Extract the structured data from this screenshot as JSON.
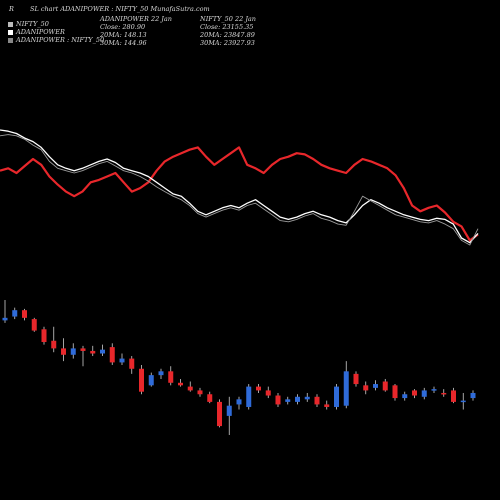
{
  "header": {
    "r_label": "R",
    "title": "SL chart ADANIPOWER : NIFTY_50  MunafaSutra.com"
  },
  "legend": [
    {
      "label": "NIFTY_50",
      "color": "#bbbbbb"
    },
    {
      "label": "ADANIPOWER",
      "color": "#ffffff"
    },
    {
      "label": "ADANIPOWER : NIFTY_50",
      "color": "#888888"
    }
  ],
  "info": {
    "adani": {
      "title": "ADANIPOWER 22 Jan",
      "close": "Close: 280.90",
      "ma20": "20MA: 148.13",
      "ma30": "30MA: 144.96"
    },
    "nifty": {
      "title": "NIFTY_50  22 Jan",
      "close": "Close: 23155.35",
      "ma20": "20MA: 23847.89",
      "ma30": "30MA: 23927.93"
    }
  },
  "colors": {
    "background": "#000000",
    "adani_line": "#ffffff",
    "nifty_line": "#e8272b",
    "ratio_line": "#9a9a9a",
    "candle_up": "#2f6bd9",
    "candle_down": "#e8272b",
    "wick": "#cfcfcf"
  },
  "chart_data": {
    "type": "line",
    "series": [
      {
        "name": "NIFTY_50",
        "color": "#e8272b",
        "values": [
          70,
          72,
          68,
          74,
          80,
          75,
          65,
          58,
          52,
          48,
          52,
          60,
          62,
          65,
          68,
          60,
          52,
          55,
          60,
          70,
          78,
          82,
          85,
          88,
          90,
          82,
          75,
          80,
          85,
          90,
          75,
          72,
          68,
          75,
          80,
          82,
          85,
          84,
          80,
          75,
          72,
          70,
          68,
          75,
          80,
          78,
          75,
          72,
          66,
          55,
          40,
          35,
          38,
          40,
          34,
          26,
          22,
          10,
          15
        ]
      },
      {
        "name": "ADANIPOWER",
        "color": "#ffffff",
        "values": [
          105,
          104,
          102,
          98,
          95,
          90,
          82,
          75,
          72,
          70,
          72,
          75,
          78,
          80,
          77,
          72,
          70,
          68,
          65,
          60,
          55,
          50,
          48,
          42,
          35,
          32,
          35,
          38,
          40,
          38,
          42,
          45,
          40,
          35,
          30,
          28,
          30,
          33,
          35,
          32,
          30,
          27,
          25,
          32,
          40,
          45,
          42,
          38,
          35,
          32,
          30,
          28,
          27,
          29,
          28,
          24,
          12,
          8,
          16
        ]
      },
      {
        "name": "ADANIPOWER : NIFTY_50",
        "color": "#9a9a9a",
        "values": [
          100,
          101,
          100,
          97,
          92,
          88,
          78,
          72,
          70,
          68,
          70,
          73,
          76,
          78,
          74,
          70,
          68,
          65,
          61,
          56,
          52,
          48,
          45,
          40,
          33,
          30,
          33,
          36,
          38,
          36,
          40,
          42,
          37,
          32,
          27,
          26,
          28,
          31,
          33,
          29,
          27,
          24,
          23,
          35,
          48,
          44,
          40,
          36,
          32,
          30,
          28,
          26,
          25,
          27,
          24,
          20,
          10,
          6,
          20
        ]
      }
    ],
    "candles": [
      {
        "o": 60,
        "c": 62,
        "h": 76,
        "l": 58
      },
      {
        "o": 63,
        "c": 68,
        "h": 70,
        "l": 61
      },
      {
        "o": 68,
        "c": 62,
        "h": 69,
        "l": 60
      },
      {
        "o": 61,
        "c": 52,
        "h": 62,
        "l": 51
      },
      {
        "o": 53,
        "c": 43,
        "h": 55,
        "l": 41
      },
      {
        "o": 44,
        "c": 38,
        "h": 55,
        "l": 35
      },
      {
        "o": 38,
        "c": 33,
        "h": 46,
        "l": 28
      },
      {
        "o": 33,
        "c": 38,
        "h": 42,
        "l": 30
      },
      {
        "o": 38,
        "c": 36,
        "h": 40,
        "l": 24
      },
      {
        "o": 36,
        "c": 34,
        "h": 40,
        "l": 32
      },
      {
        "o": 34,
        "c": 37,
        "h": 41,
        "l": 32
      },
      {
        "o": 39,
        "c": 27,
        "h": 42,
        "l": 25
      },
      {
        "o": 27,
        "c": 30,
        "h": 34,
        "l": 25
      },
      {
        "o": 30,
        "c": 22,
        "h": 32,
        "l": 18
      },
      {
        "o": 22,
        "c": 4,
        "h": 25,
        "l": 2
      },
      {
        "o": 9,
        "c": 17,
        "h": 19,
        "l": 8
      },
      {
        "o": 17,
        "c": 20,
        "h": 22,
        "l": 14
      },
      {
        "o": 20,
        "c": 11,
        "h": 24,
        "l": 9
      },
      {
        "o": 11,
        "c": 9,
        "h": 14,
        "l": 8
      },
      {
        "o": 8,
        "c": 5,
        "h": 12,
        "l": 4
      },
      {
        "o": 5,
        "c": 2,
        "h": 7,
        "l": 0
      },
      {
        "o": 2,
        "c": -4,
        "h": 4,
        "l": -5
      },
      {
        "o": -4,
        "c": -23,
        "h": -2,
        "l": -24
      },
      {
        "o": -15,
        "c": -7,
        "h": 0,
        "l": -30
      },
      {
        "o": -6,
        "c": -2,
        "h": 0,
        "l": -10
      },
      {
        "o": -8,
        "c": 8,
        "h": 10,
        "l": -10
      },
      {
        "o": 8,
        "c": 5,
        "h": 10,
        "l": 3
      },
      {
        "o": 5,
        "c": 1,
        "h": 8,
        "l": -1
      },
      {
        "o": 1,
        "c": -6,
        "h": 3,
        "l": -8
      },
      {
        "o": -4,
        "c": -2,
        "h": 0,
        "l": -6
      },
      {
        "o": -4,
        "c": 0,
        "h": 2,
        "l": -6
      },
      {
        "o": -2,
        "c": 0,
        "h": 3,
        "l": -4
      },
      {
        "o": 0,
        "c": -6,
        "h": 2,
        "l": -8
      },
      {
        "o": -6,
        "c": -8,
        "h": -3,
        "l": -10
      },
      {
        "o": -8,
        "c": 8,
        "h": 10,
        "l": -10
      },
      {
        "o": -7,
        "c": 20,
        "h": 28,
        "l": -9
      },
      {
        "o": 18,
        "c": 10,
        "h": 20,
        "l": 8
      },
      {
        "o": 9,
        "c": 5,
        "h": 12,
        "l": 2
      },
      {
        "o": 7,
        "c": 10,
        "h": 13,
        "l": 5
      },
      {
        "o": 12,
        "c": 5,
        "h": 14,
        "l": 4
      },
      {
        "o": 9,
        "c": -1,
        "h": 10,
        "l": -3
      },
      {
        "o": -1,
        "c": 2,
        "h": 4,
        "l": -3
      },
      {
        "o": 5,
        "c": 1,
        "h": 6,
        "l": -1
      },
      {
        "o": 0,
        "c": 5,
        "h": 7,
        "l": -2
      },
      {
        "o": 5,
        "c": 6,
        "h": 8,
        "l": 3
      },
      {
        "o": 3,
        "c": 2,
        "h": 6,
        "l": 0
      },
      {
        "o": 5,
        "c": -4,
        "h": 7,
        "l": -5
      },
      {
        "o": -4,
        "c": -3,
        "h": 3,
        "l": -10
      },
      {
        "o": -1,
        "c": 3,
        "h": 5,
        "l": -3
      }
    ]
  }
}
